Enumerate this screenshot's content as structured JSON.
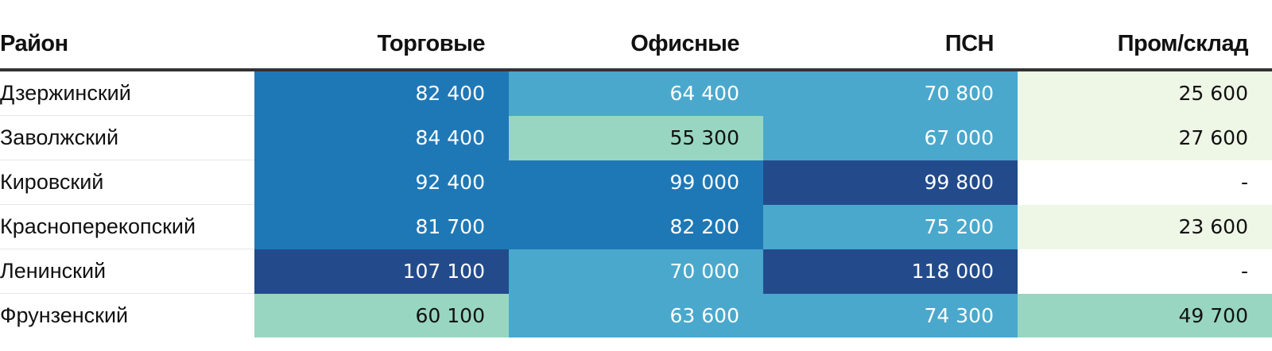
{
  "chart_data": {
    "type": "table",
    "columns": [
      "Район",
      "Торговые",
      "Офисные",
      "ПСН",
      "Пром/склад"
    ],
    "rows": [
      {
        "district": "Дзержинский",
        "values": [
          82400,
          64400,
          70800,
          25600
        ],
        "labels": [
          "82 400",
          "64 400",
          "70 800",
          "25 600"
        ]
      },
      {
        "district": "Заволжский",
        "values": [
          84400,
          55300,
          67000,
          27600
        ],
        "labels": [
          "84 400",
          "55 300",
          "67 000",
          "27 600"
        ]
      },
      {
        "district": "Кировский",
        "values": [
          92400,
          99000,
          99800,
          null
        ],
        "labels": [
          "92 400",
          "99 000",
          "99 800",
          "-"
        ]
      },
      {
        "district": "Красноперекопский",
        "values": [
          81700,
          82200,
          75200,
          23600
        ],
        "labels": [
          "81 700",
          "82 200",
          "75 200",
          "23 600"
        ]
      },
      {
        "district": "Ленинский",
        "values": [
          107100,
          70000,
          118000,
          null
        ],
        "labels": [
          "107 100",
          "70 000",
          "118 000",
          "-"
        ]
      },
      {
        "district": "Фрунзенский",
        "values": [
          60100,
          63600,
          74300,
          49700
        ],
        "labels": [
          "60 100",
          "63 600",
          "74 300",
          "49 700"
        ]
      }
    ],
    "color_scale": [
      {
        "min": 0,
        "max": 40000,
        "color": "#eef7e6",
        "text": "#111111"
      },
      {
        "min": 40000,
        "max": 62000,
        "color": "#98d6c2",
        "text": "#111111"
      },
      {
        "min": 62000,
        "max": 80000,
        "color": "#4aa8cc",
        "text": "#ffffff"
      },
      {
        "min": 80000,
        "max": 99500,
        "color": "#1f78b6",
        "text": "#ffffff"
      },
      {
        "min": 99500,
        "max": 1000000,
        "color": "#234b8c",
        "text": "#ffffff"
      }
    ],
    "missing_color": "#ffffff"
  }
}
